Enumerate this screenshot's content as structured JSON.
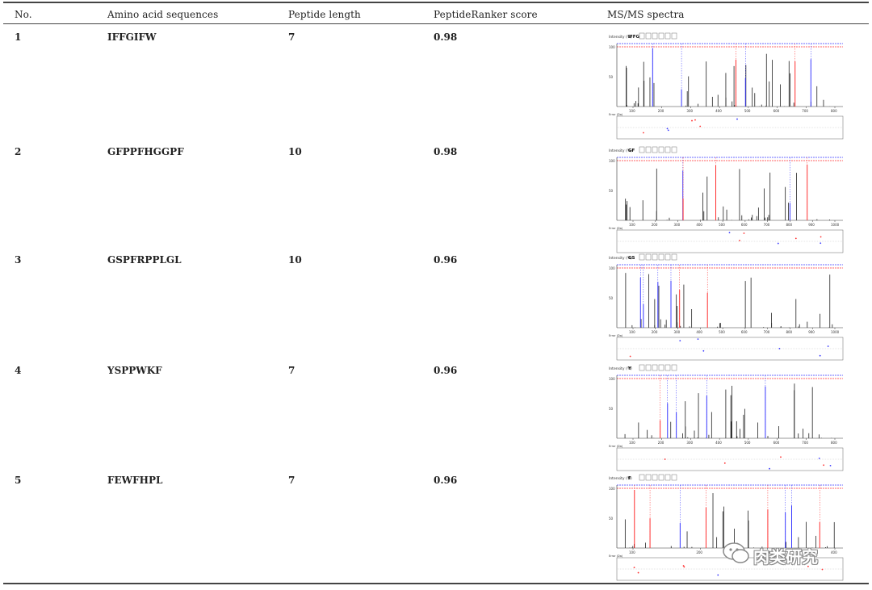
{
  "table": {
    "headers": [
      "No.",
      "Amino acid sequences",
      "Peptide length",
      "PeptideRanker score",
      "MS/MS spectra"
    ],
    "rows": [
      {
        "no": "1",
        "sequence": "IFFGIFW",
        "length": "7",
        "score": "0.98"
      },
      {
        "no": "2",
        "sequence": "GFPPFHGGPF",
        "length": "10",
        "score": "0.98"
      },
      {
        "no": "3",
        "sequence": "GSPFRPPLGL",
        "length": "10",
        "score": "0.96"
      },
      {
        "no": "4",
        "sequence": "YSPPWKF",
        "length": "7",
        "score": "0.96"
      },
      {
        "no": "5",
        "sequence": "FEWFHPL",
        "length": "7",
        "score": "0.96"
      }
    ]
  },
  "spectra": [
    {
      "ylabel": "Intensity (%)",
      "tag": "IFFG",
      "xticks": [
        "100",
        "200",
        "300",
        "400",
        "500",
        "600",
        "700",
        "800"
      ],
      "ylim": [
        0,
        100
      ],
      "errlabel": "Error (Da)"
    },
    {
      "ylabel": "Intensity (%)",
      "tag": "GF",
      "xticks": [
        "100",
        "200",
        "300",
        "400",
        "500",
        "600",
        "700",
        "800",
        "900",
        "1000"
      ],
      "ylim": [
        0,
        100
      ],
      "errlabel": "Error (Da)"
    },
    {
      "ylabel": "Intensity (%)",
      "tag": "GS",
      "xticks": [
        "100",
        "200",
        "300",
        "400",
        "500",
        "600",
        "700",
        "800",
        "900",
        "1000"
      ],
      "ylim": [
        0,
        100
      ],
      "errlabel": "Error (Da)"
    },
    {
      "ylabel": "Intensity (%)",
      "tag": "Y",
      "xticks": [
        "100",
        "200",
        "300",
        "400",
        "500",
        "600",
        "700",
        "800"
      ],
      "ylim": [
        0,
        100
      ],
      "errlabel": "Error (Da)"
    },
    {
      "ylabel": "Intensity (%)",
      "tag": "F",
      "xticks": [
        "100",
        "200",
        "300",
        "400"
      ],
      "ylim": [
        0,
        100
      ],
      "errlabel": "Error (Da)"
    }
  ],
  "watermark": {
    "text": "肉类研究",
    "icon": "wechat-icon"
  }
}
